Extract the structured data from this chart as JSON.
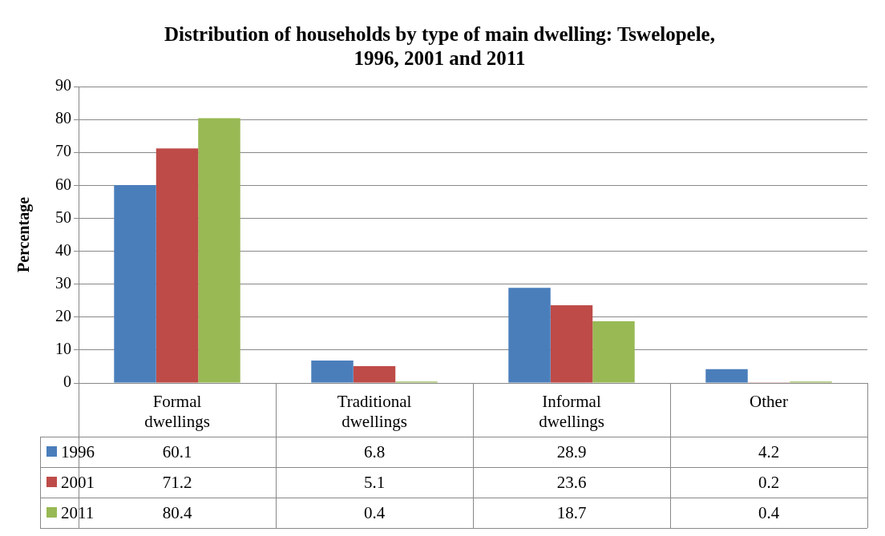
{
  "chart_data": {
    "type": "bar",
    "title": "Distribution of households by type of main dwelling: Tswelopele, 1996, 2001 and 2011",
    "ylabel": "Percentage",
    "categories": [
      "Formal dwellings",
      "Traditional dwellings",
      "Informal dwellings",
      "Other"
    ],
    "series": [
      {
        "name": "1996",
        "color": "#4a7ebb",
        "values": [
          60.1,
          6.8,
          28.9,
          4.2
        ]
      },
      {
        "name": "2001",
        "color": "#be4b48",
        "values": [
          71.2,
          5.1,
          23.6,
          0.2
        ]
      },
      {
        "name": "2011",
        "color": "#98b954",
        "values": [
          80.4,
          0.4,
          18.7,
          0.4
        ]
      }
    ],
    "ylim": [
      0,
      90
    ],
    "yticks": [
      0,
      10,
      20,
      30,
      40,
      50,
      60,
      70,
      80,
      90
    ],
    "grid": "y",
    "legend": "bottom left",
    "data_labels": true
  }
}
